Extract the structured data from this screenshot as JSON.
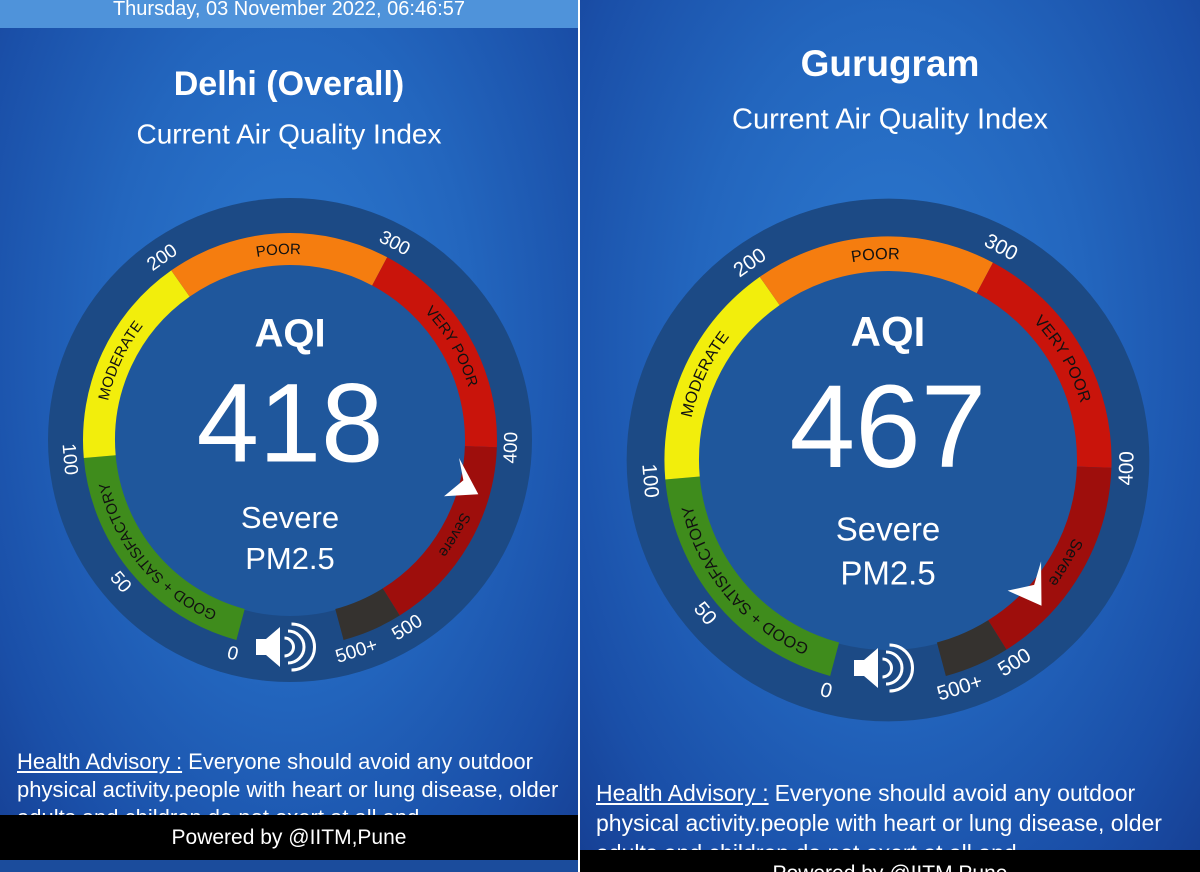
{
  "gauge": {
    "segments": [
      {
        "name": "GOOD + SATISFACTORY",
        "from": 0,
        "color": "#3f8c1c"
      },
      {
        "name": "MODERATE",
        "from": 100,
        "color": "#f2ee0c"
      },
      {
        "name": "POOR",
        "from": 200,
        "color": "#f57d0f"
      },
      {
        "name": "VERY POOR",
        "from": 300,
        "color": "#c9140b"
      },
      {
        "name": "Severe",
        "from": 400,
        "color": "#9e0e0c"
      },
      {
        "from": 500,
        "color": "#35322f"
      }
    ],
    "ticks": [
      0,
      50,
      100,
      200,
      300,
      400,
      500
    ],
    "overflow_tick": "500+"
  },
  "panels": [
    {
      "timestamp": "Thursday, 03 November 2022, 06:46:57",
      "city": "Delhi (Overall)",
      "subtitle": "Current Air Quality Index",
      "aqi_label": "AQI",
      "aqi_value": 418,
      "category": "Severe",
      "pollutant": "PM2.5",
      "advisory_label": "Health Advisory :",
      "advisory_text": "Everyone should avoid any outdoor physical activity.people with heart or lung disease, older adults and children do not exert at all and",
      "footer": "Powered by @IITM,Pune"
    },
    {
      "city": "Gurugram",
      "subtitle": "Current Air Quality Index",
      "aqi_label": "AQI",
      "aqi_value": 467,
      "category": "Severe",
      "pollutant": "PM2.5",
      "advisory_label": "Health Advisory :",
      "advisory_text": "Everyone should avoid any outdoor physical activity.people with heart or lung disease, older adults and children do not exert at all and",
      "footer": "Powered by @IITM,Pune"
    }
  ]
}
